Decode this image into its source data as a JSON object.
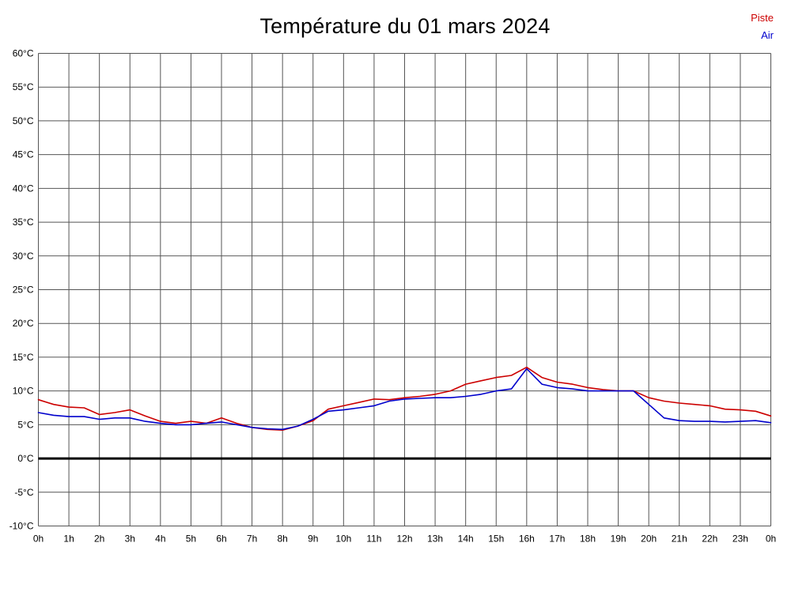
{
  "title": "Température du 01 mars 2024",
  "legend": {
    "piste": "Piste",
    "air": "Air"
  },
  "colors": {
    "piste": "#cc0000",
    "air": "#0000cc",
    "grid": "#555555",
    "zero_line": "#000000",
    "tick_label": "#000000",
    "background": "#ffffff"
  },
  "chart_data": {
    "type": "line",
    "title": "Température du 01 mars 2024",
    "xlabel": "",
    "ylabel": "",
    "xlim": [
      0,
      24
    ],
    "ylim": [
      -10,
      60
    ],
    "grid": true,
    "legend_position": "top-right",
    "x_tick_labels": [
      "0h",
      "1h",
      "2h",
      "3h",
      "4h",
      "5h",
      "6h",
      "7h",
      "8h",
      "9h",
      "10h",
      "11h",
      "12h",
      "13h",
      "14h",
      "15h",
      "16h",
      "17h",
      "18h",
      "19h",
      "20h",
      "21h",
      "22h",
      "23h",
      "0h"
    ],
    "y_ticks": [
      60,
      55,
      50,
      45,
      40,
      35,
      30,
      25,
      20,
      15,
      10,
      5,
      0,
      -5,
      -10
    ],
    "y_tick_labels": [
      "60°C",
      "55°C",
      "50°C",
      "45°C",
      "40°C",
      "35°C",
      "30°C",
      "25°C",
      "20°C",
      "15°C",
      "10°C",
      "5°C",
      "0°C",
      "-5°C",
      "-10°C"
    ],
    "zero_line_value": 0,
    "series": [
      {
        "name": "Piste",
        "color": "#cc0000",
        "points": [
          [
            0,
            8.7
          ],
          [
            0.5,
            8.0
          ],
          [
            1,
            7.6
          ],
          [
            1.5,
            7.5
          ],
          [
            2,
            6.5
          ],
          [
            2.5,
            6.8
          ],
          [
            3,
            7.2
          ],
          [
            3.5,
            6.3
          ],
          [
            4,
            5.5
          ],
          [
            4.5,
            5.2
          ],
          [
            5,
            5.5
          ],
          [
            5.5,
            5.2
          ],
          [
            6,
            6.0
          ],
          [
            6.5,
            5.2
          ],
          [
            7,
            4.6
          ],
          [
            7.5,
            4.3
          ],
          [
            8,
            4.2
          ],
          [
            8.5,
            4.8
          ],
          [
            9,
            5.6
          ],
          [
            9.5,
            7.3
          ],
          [
            10,
            7.8
          ],
          [
            10.5,
            8.3
          ],
          [
            11,
            8.8
          ],
          [
            11.5,
            8.7
          ],
          [
            12,
            9.0
          ],
          [
            12.5,
            9.2
          ],
          [
            13,
            9.5
          ],
          [
            13.5,
            10.0
          ],
          [
            14,
            11.0
          ],
          [
            14.5,
            11.5
          ],
          [
            15,
            12.0
          ],
          [
            15.5,
            12.3
          ],
          [
            16,
            13.5
          ],
          [
            16.5,
            12.0
          ],
          [
            17,
            11.3
          ],
          [
            17.5,
            11.0
          ],
          [
            18,
            10.5
          ],
          [
            18.5,
            10.2
          ],
          [
            19,
            10.0
          ],
          [
            19.5,
            10.0
          ],
          [
            20,
            9.0
          ],
          [
            20.5,
            8.5
          ],
          [
            21,
            8.2
          ],
          [
            21.5,
            8.0
          ],
          [
            22,
            7.8
          ],
          [
            22.5,
            7.3
          ],
          [
            23,
            7.2
          ],
          [
            23.5,
            7.0
          ],
          [
            24,
            6.3
          ]
        ]
      },
      {
        "name": "Air",
        "color": "#0000cc",
        "points": [
          [
            0,
            6.8
          ],
          [
            0.5,
            6.4
          ],
          [
            1,
            6.2
          ],
          [
            1.5,
            6.2
          ],
          [
            2,
            5.8
          ],
          [
            2.5,
            6.0
          ],
          [
            3,
            6.0
          ],
          [
            3.5,
            5.5
          ],
          [
            4,
            5.2
          ],
          [
            4.5,
            5.0
          ],
          [
            5,
            5.0
          ],
          [
            5.5,
            5.2
          ],
          [
            6,
            5.4
          ],
          [
            6.5,
            5.0
          ],
          [
            7,
            4.6
          ],
          [
            7.5,
            4.4
          ],
          [
            8,
            4.3
          ],
          [
            8.5,
            4.8
          ],
          [
            9,
            5.8
          ],
          [
            9.5,
            7.0
          ],
          [
            10,
            7.2
          ],
          [
            10.5,
            7.5
          ],
          [
            11,
            7.8
          ],
          [
            11.5,
            8.5
          ],
          [
            12,
            8.8
          ],
          [
            12.5,
            8.9
          ],
          [
            13,
            9.0
          ],
          [
            13.5,
            9.0
          ],
          [
            14,
            9.2
          ],
          [
            14.5,
            9.5
          ],
          [
            15,
            10.0
          ],
          [
            15.5,
            10.3
          ],
          [
            16,
            13.3
          ],
          [
            16.5,
            11.0
          ],
          [
            17,
            10.5
          ],
          [
            17.5,
            10.3
          ],
          [
            18,
            10.0
          ],
          [
            18.5,
            10.0
          ],
          [
            19,
            10.0
          ],
          [
            19.5,
            10.0
          ],
          [
            20,
            8.0
          ],
          [
            20.5,
            6.0
          ],
          [
            21,
            5.6
          ],
          [
            21.5,
            5.5
          ],
          [
            22,
            5.5
          ],
          [
            22.5,
            5.4
          ],
          [
            23,
            5.5
          ],
          [
            23.5,
            5.6
          ],
          [
            24,
            5.3
          ]
        ]
      }
    ]
  }
}
